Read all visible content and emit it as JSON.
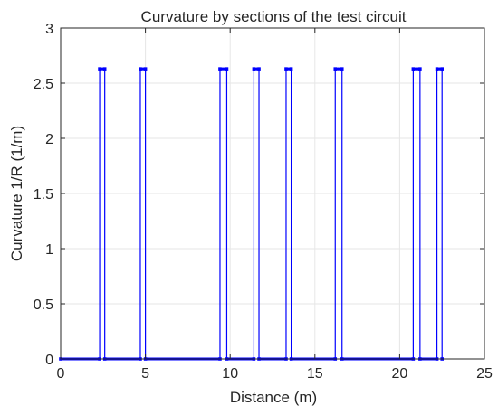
{
  "chart_data": {
    "type": "line",
    "title": "Curvature by sections of the test circuit",
    "xlabel": "Distance (m)",
    "ylabel": "Curvature 1/R (1/m)",
    "xlim": [
      0,
      25
    ],
    "ylim": [
      0,
      3
    ],
    "xticks": [
      0,
      5,
      10,
      15,
      20,
      25
    ],
    "yticks": [
      0,
      0.5,
      1,
      1.5,
      2,
      2.5,
      3
    ],
    "xtick_labels": [
      "0",
      "5",
      "10",
      "15",
      "20",
      "25"
    ],
    "ytick_labels": [
      "0",
      "0.5",
      "1",
      "1.5",
      "2",
      "2.5",
      "3"
    ],
    "grid": true,
    "series_color": "#0000ff",
    "series": [
      {
        "x": [
          0,
          2.3,
          2.3,
          2.6,
          2.6,
          4.7,
          4.7,
          5.0,
          5.0,
          9.4,
          9.4,
          9.8,
          9.8,
          11.4,
          11.4,
          11.7,
          11.7,
          13.3,
          13.3,
          13.6,
          13.6,
          16.2,
          16.2,
          16.6,
          16.6,
          20.8,
          20.8,
          21.2,
          21.2,
          22.2,
          22.2,
          22.5,
          22.5
        ],
        "y": [
          0,
          0,
          2.63,
          2.63,
          0,
          0,
          2.63,
          2.63,
          0,
          0,
          2.63,
          2.63,
          0,
          0,
          2.63,
          2.63,
          0,
          0,
          2.63,
          2.63,
          0,
          0,
          2.63,
          2.63,
          0,
          0,
          2.63,
          2.63,
          0,
          0,
          2.63,
          2.63,
          0
        ]
      }
    ]
  }
}
